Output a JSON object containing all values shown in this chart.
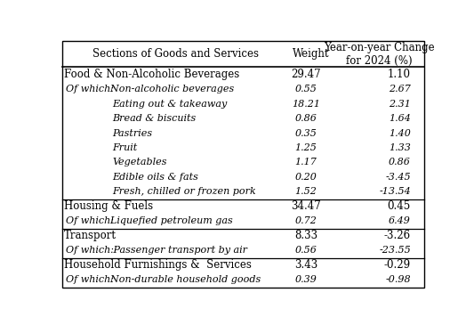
{
  "rows": [
    {
      "label": "Food & Non-Alcoholic Beverages",
      "weight": "29.47",
      "change": "1.10",
      "style": "header",
      "indent": 0
    },
    {
      "label_prefix": "Of which:",
      "label_item": "  Non-alcoholic beverages",
      "weight": "0.55",
      "change": "2.67",
      "style": "ofwhich",
      "indent": 1
    },
    {
      "label_prefix": "",
      "label_item": "Eating out & takeaway",
      "weight": "18.21",
      "change": "2.31",
      "style": "sub",
      "indent": 2
    },
    {
      "label_prefix": "",
      "label_item": "Bread & biscuits",
      "weight": "0.86",
      "change": "1.64",
      "style": "sub",
      "indent": 2
    },
    {
      "label_prefix": "",
      "label_item": "Pastries",
      "weight": "0.35",
      "change": "1.40",
      "style": "sub",
      "indent": 2
    },
    {
      "label_prefix": "",
      "label_item": "Fruit",
      "weight": "1.25",
      "change": "1.33",
      "style": "sub",
      "indent": 2
    },
    {
      "label_prefix": "",
      "label_item": "Vegetables",
      "weight": "1.17",
      "change": "0.86",
      "style": "sub",
      "indent": 2
    },
    {
      "label_prefix": "",
      "label_item": "Edible oils & fats",
      "weight": "0.20",
      "change": "-3.45",
      "style": "sub",
      "indent": 2
    },
    {
      "label_prefix": "",
      "label_item": "Fresh, chilled or frozen pork",
      "weight": "1.52",
      "change": "-13.54",
      "style": "sub",
      "indent": 2
    },
    {
      "label": "Housing & Fuels",
      "weight": "34.47",
      "change": "0.45",
      "style": "header",
      "indent": 0
    },
    {
      "label_prefix": "Of which:",
      "label_item": "  Liquefied petroleum gas",
      "weight": "0.72",
      "change": "6.49",
      "style": "ofwhich",
      "indent": 1
    },
    {
      "label": "Transport",
      "weight": "8.33",
      "change": "-3.26",
      "style": "header",
      "indent": 0
    },
    {
      "label_prefix": "Of which:",
      "label_item": "   Passenger transport by air",
      "weight": "0.56",
      "change": "-23.55",
      "style": "ofwhich",
      "indent": 1
    },
    {
      "label": "Household Furnishings &  Services",
      "weight": "3.43",
      "change": "-0.29",
      "style": "header",
      "indent": 0
    },
    {
      "label_prefix": "Of which:",
      "label_item": "  Non-durable household goods",
      "weight": "0.39",
      "change": "-0.98",
      "style": "ofwhich",
      "indent": 1
    }
  ],
  "col_headers": [
    "Sections of Goods and Services",
    "Weight",
    "Year-on-year Change\nfor 2024 (%)"
  ],
  "bg_color": "#ffffff",
  "border_color": "#000000",
  "header_fontsize": 8.5,
  "row_fontsize": 8.0
}
